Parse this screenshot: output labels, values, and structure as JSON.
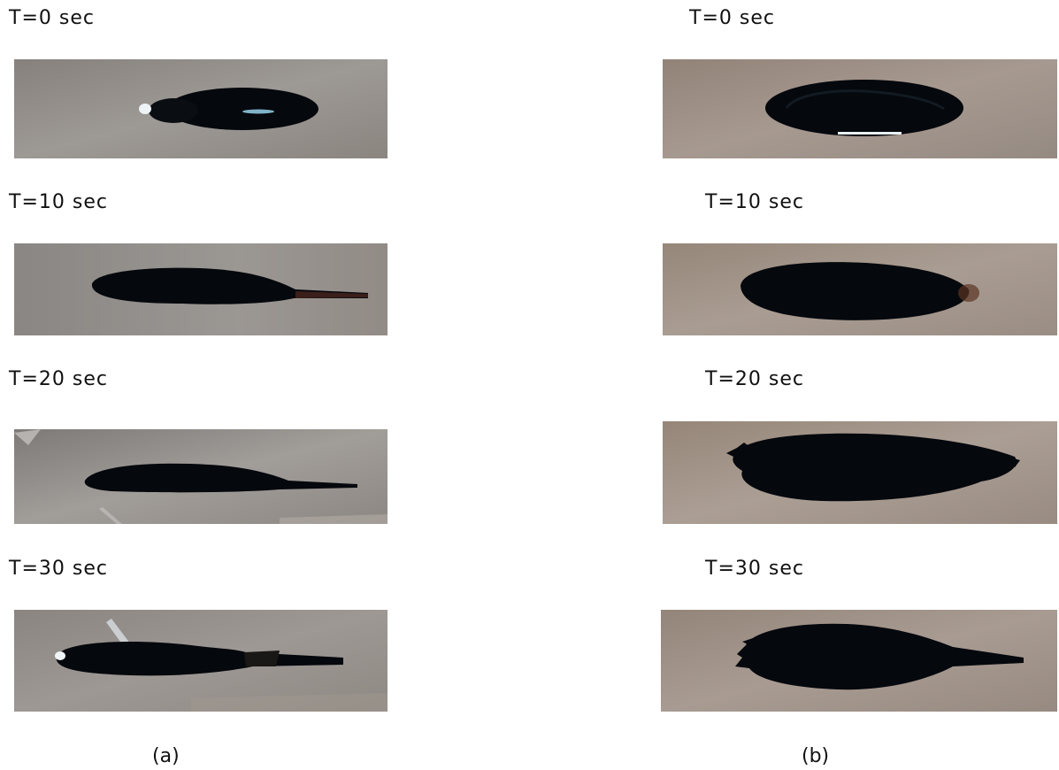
{
  "figure": {
    "columns": [
      {
        "panel_label": "(a)",
        "frames": [
          {
            "time_label": "T=0 sec"
          },
          {
            "time_label": "T=10 sec"
          },
          {
            "time_label": "T=20 sec"
          },
          {
            "time_label": "T=30 sec"
          }
        ]
      },
      {
        "panel_label": "(b)",
        "frames": [
          {
            "time_label": "T=0 sec"
          },
          {
            "time_label": "T=10 sec"
          },
          {
            "time_label": "T=20 sec"
          },
          {
            "time_label": "T=30 sec"
          }
        ]
      }
    ],
    "colors": {
      "background_a": "#8f8a86",
      "background_b": "#9a8d84",
      "droplet": "#05080d",
      "highlight": "#e8f0f4"
    }
  }
}
